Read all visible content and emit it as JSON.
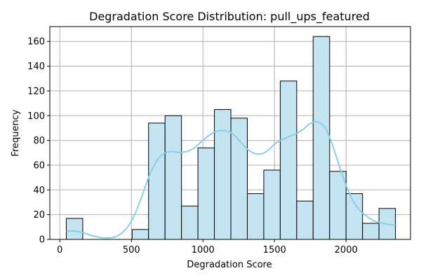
{
  "chart_data": {
    "type": "bar",
    "subtype": "histogram",
    "title": "Degradation Score Distribution: pull_ups_featured",
    "xlabel": "Degradation Score",
    "ylabel": "Frequency",
    "xlim": [
      -70,
      2450
    ],
    "ylim": [
      0,
      172
    ],
    "xticks": [
      0,
      500,
      1000,
      1500,
      2000
    ],
    "yticks": [
      0,
      20,
      40,
      60,
      80,
      100,
      120,
      140,
      160
    ],
    "grid": true,
    "bar_color": "#c5e4f2",
    "bar_edge_color": "#000000",
    "kde_color": "#87ceeb",
    "bins": [
      {
        "x0": 45,
        "x1": 160,
        "count": 17
      },
      {
        "x0": 160,
        "x1": 275,
        "count": 0
      },
      {
        "x0": 275,
        "x1": 390,
        "count": 0
      },
      {
        "x0": 390,
        "x1": 505,
        "count": 0
      },
      {
        "x0": 505,
        "x1": 620,
        "count": 8
      },
      {
        "x0": 620,
        "x1": 735,
        "count": 94
      },
      {
        "x0": 735,
        "x1": 850,
        "count": 100
      },
      {
        "x0": 850,
        "x1": 965,
        "count": 27
      },
      {
        "x0": 965,
        "x1": 1080,
        "count": 74
      },
      {
        "x0": 1080,
        "x1": 1195,
        "count": 105
      },
      {
        "x0": 1195,
        "x1": 1310,
        "count": 98
      },
      {
        "x0": 1310,
        "x1": 1425,
        "count": 37
      },
      {
        "x0": 1425,
        "x1": 1540,
        "count": 56
      },
      {
        "x0": 1540,
        "x1": 1655,
        "count": 128
      },
      {
        "x0": 1655,
        "x1": 1770,
        "count": 31
      },
      {
        "x0": 1770,
        "x1": 1885,
        "count": 164
      },
      {
        "x0": 1885,
        "x1": 2000,
        "count": 55
      },
      {
        "x0": 2000,
        "x1": 2115,
        "count": 37
      },
      {
        "x0": 2115,
        "x1": 2230,
        "count": 13
      },
      {
        "x0": 2230,
        "x1": 2345,
        "count": 25
      }
    ],
    "kde": {
      "x": [
        45,
        100,
        160,
        220,
        300,
        360,
        420,
        480,
        530,
        580,
        620,
        660,
        700,
        740,
        780,
        820,
        860,
        900,
        940,
        980,
        1020,
        1060,
        1100,
        1140,
        1180,
        1220,
        1260,
        1300,
        1340,
        1380,
        1420,
        1460,
        1500,
        1540,
        1580,
        1620,
        1660,
        1700,
        1740,
        1780,
        1820,
        1860,
        1900,
        1940,
        1980,
        2020,
        2060,
        2100,
        2140,
        2180,
        2220,
        2260,
        2300,
        2345
      ],
      "y": [
        6.5,
        6.8,
        5.5,
        3.2,
        1.2,
        1.3,
        4.0,
        11.0,
        22.0,
        37.0,
        50.0,
        60.0,
        67.0,
        70.0,
        71.0,
        70.5,
        70.5,
        71.5,
        74.0,
        78.0,
        82.0,
        85.5,
        87.5,
        88.0,
        87.0,
        84.0,
        79.0,
        74.0,
        70.5,
        69.0,
        69.5,
        72.5,
        77.0,
        80.0,
        82.0,
        84.0,
        86.0,
        89.0,
        93.0,
        95.0,
        94.0,
        89.0,
        78.0,
        64.0,
        50.0,
        38.0,
        29.0,
        23.0,
        19.0,
        16.0,
        14.0,
        13.0,
        12.0,
        11.5
      ]
    }
  }
}
